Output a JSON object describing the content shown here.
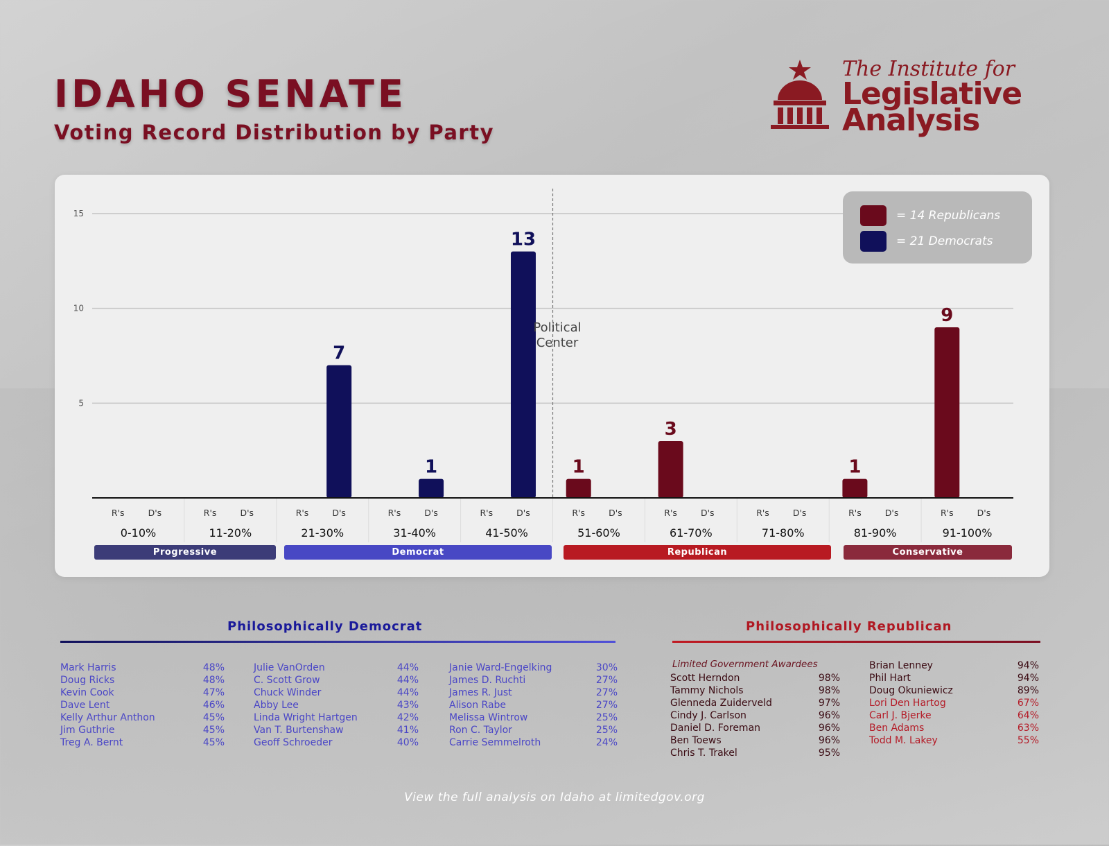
{
  "header": {
    "title": "IDAHO SENATE",
    "subtitle": "Voting Record Distribution by Party"
  },
  "logo": {
    "line1": "The Institute for",
    "line2": "Legislative",
    "line3": "Analysis"
  },
  "colors": {
    "republican": "#6a0a1c",
    "democrat": "#10105a",
    "progressive_bar": "#3c3c78",
    "democrat_bar": "#4848c4",
    "republican_bar": "#b81a22",
    "conservative_bar": "#8a2a3c"
  },
  "legend": {
    "republicans": "=  14 Republicans",
    "democrats": "=  21 Democrats"
  },
  "center_label": [
    "Political",
    "Center"
  ],
  "chart_data": {
    "type": "bar",
    "title": "Voting Record Distribution by Party",
    "categories": [
      "0-10%",
      "11-20%",
      "21-30%",
      "31-40%",
      "41-50%",
      "51-60%",
      "61-70%",
      "71-80%",
      "81-90%",
      "91-100%"
    ],
    "sub_categories": [
      "R's",
      "D's"
    ],
    "series": [
      {
        "name": "Republicans",
        "values": [
          0,
          0,
          0,
          0,
          0,
          1,
          3,
          0,
          1,
          9
        ]
      },
      {
        "name": "Democrats",
        "values": [
          0,
          0,
          7,
          1,
          13,
          0,
          0,
          0,
          0,
          0
        ]
      }
    ],
    "yticks": [
      5,
      10,
      15
    ],
    "ylim": [
      0,
      15
    ],
    "grid": true,
    "legend_position": "top-right",
    "annotation": "Political Center"
  },
  "party_bands": {
    "progressive": "Progressive",
    "democrat": "Democrat",
    "republican": "Republican",
    "conservative": "Conservative"
  },
  "democrat_section": {
    "heading": "Philosophically Democrat",
    "columns": [
      [
        {
          "name": "Mark Harris",
          "pct": "48%"
        },
        {
          "name": "Doug Ricks",
          "pct": "48%"
        },
        {
          "name": "Kevin Cook",
          "pct": "47%"
        },
        {
          "name": "Dave Lent",
          "pct": "46%"
        },
        {
          "name": "Kelly Arthur Anthon",
          "pct": "45%"
        },
        {
          "name": "Jim Guthrie",
          "pct": "45%"
        },
        {
          "name": "Treg A. Bernt",
          "pct": "45%"
        }
      ],
      [
        {
          "name": "Julie VanOrden",
          "pct": "44%"
        },
        {
          "name": "C. Scott Grow",
          "pct": "44%"
        },
        {
          "name": "Chuck Winder",
          "pct": "44%"
        },
        {
          "name": "Abby Lee",
          "pct": "43%"
        },
        {
          "name": "Linda Wright Hartgen",
          "pct": "42%"
        },
        {
          "name": "Van T. Burtenshaw",
          "pct": "41%"
        },
        {
          "name": "Geoff Schroeder",
          "pct": "40%"
        }
      ],
      [
        {
          "name": "Janie Ward-Engelking",
          "pct": "30%"
        },
        {
          "name": "James D. Ruchti",
          "pct": "27%"
        },
        {
          "name": "James R. Just",
          "pct": "27%"
        },
        {
          "name": "Alison Rabe",
          "pct": "27%"
        },
        {
          "name": "Melissa Wintrow",
          "pct": "25%"
        },
        {
          "name": "Ron C. Taylor",
          "pct": "25%"
        },
        {
          "name": "Carrie Semmelroth",
          "pct": "24%"
        }
      ]
    ]
  },
  "republican_section": {
    "heading": "Philosophically Republican",
    "awardees_label": "Limited Government Awardees",
    "columns": [
      [
        {
          "name": "Scott Herndon",
          "pct": "98%"
        },
        {
          "name": "Tammy Nichols",
          "pct": "98%"
        },
        {
          "name": "Glenneda Zuiderveld",
          "pct": "97%"
        },
        {
          "name": "Cindy J. Carlson",
          "pct": "96%"
        },
        {
          "name": "Daniel D. Foreman",
          "pct": "96%"
        },
        {
          "name": "Ben Toews",
          "pct": "96%"
        },
        {
          "name": "Chris T. Trakel",
          "pct": "95%"
        }
      ],
      [
        {
          "name": "Brian Lenney",
          "pct": "94%"
        },
        {
          "name": "Phil Hart",
          "pct": "94%"
        },
        {
          "name": "Doug Okuniewicz",
          "pct": "89%"
        },
        {
          "name": "Lori Den Hartog",
          "pct": "67%"
        },
        {
          "name": "Carl J. Bjerke",
          "pct": "64%"
        },
        {
          "name": "Ben Adams",
          "pct": "63%"
        },
        {
          "name": "Todd M. Lakey",
          "pct": "55%"
        }
      ]
    ]
  },
  "footer": "View the full analysis on Idaho at limitedgov.org"
}
